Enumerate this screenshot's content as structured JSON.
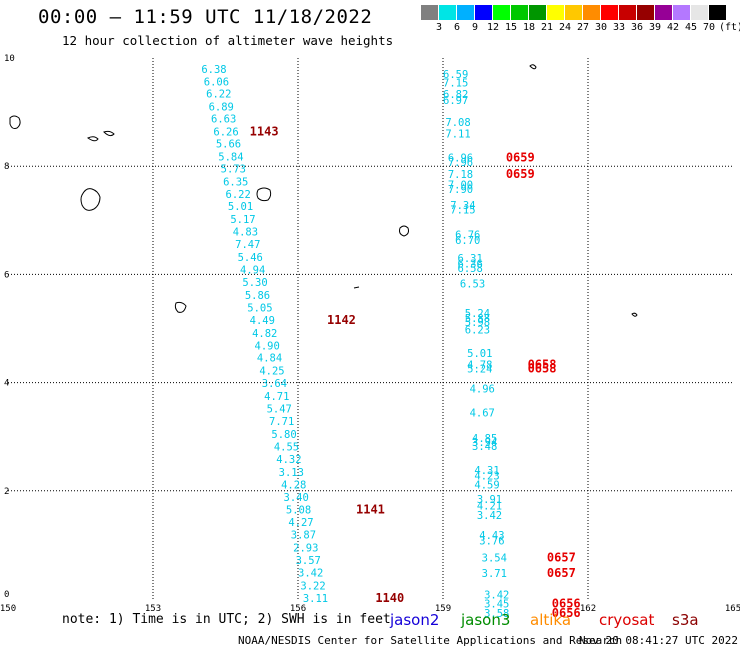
{
  "header": {
    "title": "00:00 – 11:59 UTC 11/18/2022",
    "subtitle": "12 hour collection of altimeter wave heights"
  },
  "color_scale": {
    "colors": [
      "#808080",
      "#00e5e5",
      "#00b0ff",
      "#0000ff",
      "#00ff00",
      "#00c800",
      "#009600",
      "#ffff00",
      "#ffc800",
      "#ff8c00",
      "#ff0000",
      "#c80000",
      "#960000",
      "#960096",
      "#b478ff",
      "#e6e6e6",
      "#000000"
    ],
    "labels": [
      "3",
      "6",
      "9",
      "12",
      "15",
      "18",
      "21",
      "24",
      "27",
      "30",
      "33",
      "36",
      "39",
      "42",
      "45",
      "70",
      "(ft)"
    ]
  },
  "map": {
    "x_ticks": [
      "150",
      "153",
      "156",
      "159",
      "162",
      "165"
    ],
    "y_ticks": [
      "0",
      "2",
      "4",
      "6",
      "8",
      "10"
    ],
    "grid_lon": [
      153,
      156,
      159,
      162
    ],
    "grid_lat": [
      2,
      4,
      6,
      8
    ],
    "track_left": {
      "values": [
        {
          "lon": 154.0,
          "lat": 9.8,
          "v": "6.38"
        },
        {
          "lon": 154.05,
          "lat": 9.57,
          "v": "6.06"
        },
        {
          "lon": 154.1,
          "lat": 9.34,
          "v": "6.22"
        },
        {
          "lon": 154.15,
          "lat": 9.1,
          "v": "6.89"
        },
        {
          "lon": 154.2,
          "lat": 8.88,
          "v": "6.63"
        },
        {
          "lon": 154.25,
          "lat": 8.64,
          "v": "6.26"
        },
        {
          "lon": 154.3,
          "lat": 8.42,
          "v": "5.66"
        },
        {
          "lon": 154.35,
          "lat": 8.18,
          "v": "5.84"
        },
        {
          "lon": 154.4,
          "lat": 7.96,
          "v": "5.73"
        },
        {
          "lon": 154.45,
          "lat": 7.72,
          "v": "6.35"
        },
        {
          "lon": 154.5,
          "lat": 7.49,
          "v": "6.22"
        },
        {
          "lon": 154.55,
          "lat": 7.26,
          "v": "5.01"
        },
        {
          "lon": 154.6,
          "lat": 7.02,
          "v": "5.17"
        },
        {
          "lon": 154.65,
          "lat": 6.79,
          "v": "4.83"
        },
        {
          "lon": 154.7,
          "lat": 6.56,
          "v": "7.47"
        },
        {
          "lon": 154.75,
          "lat": 6.32,
          "v": "5.46"
        },
        {
          "lon": 154.8,
          "lat": 6.09,
          "v": "4.94"
        },
        {
          "lon": 154.85,
          "lat": 5.86,
          "v": "5.30"
        },
        {
          "lon": 154.9,
          "lat": 5.62,
          "v": "5.86"
        },
        {
          "lon": 154.95,
          "lat": 5.39,
          "v": "5.05"
        },
        {
          "lon": 155.0,
          "lat": 5.16,
          "v": "4.49"
        },
        {
          "lon": 155.05,
          "lat": 4.92,
          "v": "4.82"
        },
        {
          "lon": 155.1,
          "lat": 4.69,
          "v": "4.90"
        },
        {
          "lon": 155.15,
          "lat": 4.46,
          "v": "4.84"
        },
        {
          "lon": 155.2,
          "lat": 4.22,
          "v": "4.25"
        },
        {
          "lon": 155.25,
          "lat": 3.99,
          "v": "3.64"
        },
        {
          "lon": 155.3,
          "lat": 3.75,
          "v": "4.71"
        },
        {
          "lon": 155.35,
          "lat": 3.52,
          "v": "5.47"
        },
        {
          "lon": 155.4,
          "lat": 3.29,
          "v": "7.71"
        },
        {
          "lon": 155.45,
          "lat": 3.05,
          "v": "5.80"
        },
        {
          "lon": 155.5,
          "lat": 2.82,
          "v": "4.55"
        },
        {
          "lon": 155.55,
          "lat": 2.59,
          "v": "4.32"
        },
        {
          "lon": 155.6,
          "lat": 2.35,
          "v": "3.13"
        },
        {
          "lon": 155.65,
          "lat": 2.12,
          "v": "4.28"
        },
        {
          "lon": 155.7,
          "lat": 1.89,
          "v": "3.40"
        },
        {
          "lon": 155.75,
          "lat": 1.65,
          "v": "5.08"
        },
        {
          "lon": 155.8,
          "lat": 1.42,
          "v": "4.27"
        },
        {
          "lon": 155.85,
          "lat": 1.19,
          "v": "3.87"
        },
        {
          "lon": 155.9,
          "lat": 0.95,
          "v": "2.93"
        },
        {
          "lon": 155.95,
          "lat": 0.72,
          "v": "3.57"
        },
        {
          "lon": 156.0,
          "lat": 0.49,
          "v": "3.42"
        },
        {
          "lon": 156.05,
          "lat": 0.25,
          "v": "3.22"
        },
        {
          "lon": 156.1,
          "lat": 0.02,
          "v": "3.11"
        }
      ],
      "passes": [
        {
          "lon": 155.0,
          "lat": 8.64,
          "v": "1143"
        },
        {
          "lon": 156.6,
          "lat": 5.16,
          "v": "1142"
        },
        {
          "lon": 157.2,
          "lat": 1.65,
          "v": "1141"
        },
        {
          "lon": 157.6,
          "lat": 0.02,
          "v": "1140"
        }
      ]
    },
    "track_right": {
      "values": [
        {
          "lon": 159.0,
          "lat": 9.7,
          "v": "6.59"
        },
        {
          "lon": 159.0,
          "lat": 9.55,
          "v": "7.15"
        },
        {
          "lon": 159.0,
          "lat": 9.33,
          "v": "6.82"
        },
        {
          "lon": 159.0,
          "lat": 9.22,
          "v": "6.97"
        },
        {
          "lon": 159.05,
          "lat": 8.82,
          "v": "7.08"
        },
        {
          "lon": 159.05,
          "lat": 8.6,
          "v": "7.11"
        },
        {
          "lon": 159.1,
          "lat": 8.16,
          "v": "6.96"
        },
        {
          "lon": 159.1,
          "lat": 8.08,
          "v": "7.96"
        },
        {
          "lon": 159.1,
          "lat": 7.86,
          "v": "7.18"
        },
        {
          "lon": 159.1,
          "lat": 7.66,
          "v": "7.00"
        },
        {
          "lon": 159.1,
          "lat": 7.58,
          "v": "7.90"
        },
        {
          "lon": 159.15,
          "lat": 7.28,
          "v": "7.34"
        },
        {
          "lon": 159.15,
          "lat": 7.2,
          "v": "7.15"
        },
        {
          "lon": 159.25,
          "lat": 6.74,
          "v": "6.76"
        },
        {
          "lon": 159.25,
          "lat": 6.64,
          "v": "6.70"
        },
        {
          "lon": 159.3,
          "lat": 6.3,
          "v": "6.31"
        },
        {
          "lon": 159.3,
          "lat": 6.2,
          "v": "6.36"
        },
        {
          "lon": 159.3,
          "lat": 6.12,
          "v": "6.58"
        },
        {
          "lon": 159.35,
          "lat": 5.83,
          "v": "6.53"
        },
        {
          "lon": 159.45,
          "lat": 5.29,
          "v": "5.24"
        },
        {
          "lon": 159.45,
          "lat": 5.19,
          "v": "5.88"
        },
        {
          "lon": 159.45,
          "lat": 5.12,
          "v": "5.98"
        },
        {
          "lon": 159.45,
          "lat": 4.98,
          "v": "6.23"
        },
        {
          "lon": 159.5,
          "lat": 4.55,
          "v": "5.01"
        },
        {
          "lon": 159.5,
          "lat": 4.33,
          "v": "4.78"
        },
        {
          "lon": 159.5,
          "lat": 4.26,
          "v": "5.24"
        },
        {
          "lon": 159.55,
          "lat": 3.89,
          "v": "4.96"
        },
        {
          "lon": 159.55,
          "lat": 3.45,
          "v": "4.67"
        },
        {
          "lon": 159.6,
          "lat": 2.98,
          "v": "4.85"
        },
        {
          "lon": 159.6,
          "lat": 2.9,
          "v": "3.94"
        },
        {
          "lon": 159.6,
          "lat": 2.83,
          "v": "3.48"
        },
        {
          "lon": 159.65,
          "lat": 2.38,
          "v": "4.31"
        },
        {
          "lon": 159.65,
          "lat": 2.28,
          "v": "4.23"
        },
        {
          "lon": 159.65,
          "lat": 2.12,
          "v": "4.59"
        },
        {
          "lon": 159.7,
          "lat": 1.85,
          "v": "3.91"
        },
        {
          "lon": 159.7,
          "lat": 1.73,
          "v": "4.21"
        },
        {
          "lon": 159.7,
          "lat": 1.55,
          "v": "3.42"
        },
        {
          "lon": 159.75,
          "lat": 1.18,
          "v": "4.43"
        },
        {
          "lon": 159.75,
          "lat": 1.08,
          "v": "3.76"
        },
        {
          "lon": 159.8,
          "lat": 0.77,
          "v": "3.54"
        },
        {
          "lon": 159.8,
          "lat": 0.48,
          "v": "3.71"
        },
        {
          "lon": 159.85,
          "lat": 0.08,
          "v": "3.42"
        },
        {
          "lon": 159.85,
          "lat": -0.08,
          "v": "3.45"
        },
        {
          "lon": 159.85,
          "lat": -0.26,
          "v": "3.58"
        }
      ],
      "passes": [
        {
          "lon": 160.3,
          "lat": 8.16,
          "v": "0659"
        },
        {
          "lon": 160.3,
          "lat": 7.86,
          "v": "0659"
        },
        {
          "lon": 160.75,
          "lat": 4.33,
          "v": "0658"
        },
        {
          "lon": 160.75,
          "lat": 4.26,
          "v": "0658"
        },
        {
          "lon": 161.15,
          "lat": 0.77,
          "v": "0657"
        },
        {
          "lon": 161.15,
          "lat": 0.48,
          "v": "0657"
        },
        {
          "lon": 161.25,
          "lat": -0.08,
          "v": "0656"
        },
        {
          "lon": 161.25,
          "lat": -0.26,
          "v": "0656"
        }
      ]
    }
  },
  "footer": {
    "note": "note: 1) Time is in UTC; 2) SWH is in feet",
    "credit": "NOAA/NESDIS Center for Satellite Applications and Research",
    "timestamp": "Nov 20 08:41:27 UTC 2022"
  },
  "legend": [
    {
      "name": "jason2",
      "color": "#1400d8"
    },
    {
      "name": "jason3",
      "color": "#008c00"
    },
    {
      "name": "altika",
      "color": "#ff8c00"
    },
    {
      "name": "cryosat",
      "color": "#dc0000"
    },
    {
      "name": "s3a",
      "color": "#8b0000"
    }
  ],
  "colors": {
    "grid": "#000000",
    "value_text": "#00c8e6",
    "pass_left": "#960000",
    "pass_right": "#e60000",
    "coastline": "#000000"
  }
}
